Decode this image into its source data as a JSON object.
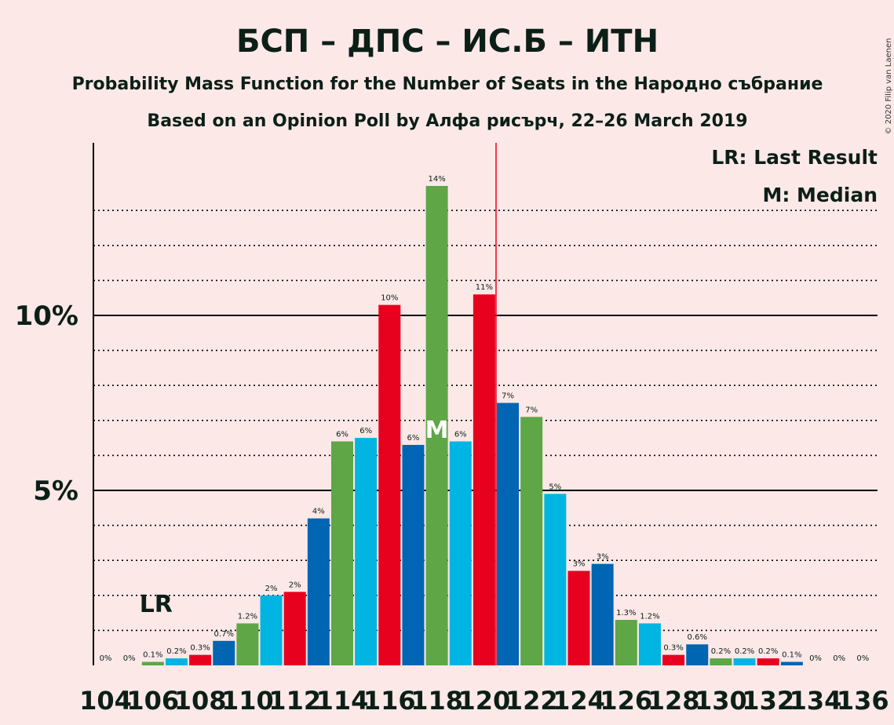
{
  "title": "БСП – ДПС – ИС.Б – ИТН",
  "subtitle1": "Probability Mass Function for the Number of Seats in the Народно събрание",
  "subtitle2": "Based on an Opinion Poll by Алфа рисърч, 22–26 March 2019",
  "copyright": "© 2020 Filip van Laenen",
  "legend": {
    "lr": "LR: Last Result",
    "m": "M: Median"
  },
  "markers": {
    "lr_label": "LR",
    "median_label": "M"
  },
  "colors": {
    "background": "#fde8e8",
    "red": "#e8001f",
    "blue": "#0065b3",
    "green": "#5ea646",
    "cyan": "#00b5e2",
    "majority_line": "#e8001f"
  },
  "chart_data": {
    "type": "bar",
    "x": [
      104,
      105,
      106,
      107,
      108,
      109,
      110,
      111,
      112,
      113,
      114,
      115,
      116,
      117,
      118,
      119,
      120,
      121,
      122,
      123,
      124,
      125,
      126,
      127,
      128,
      129,
      130,
      131,
      132,
      133,
      134,
      135,
      136
    ],
    "values": [
      0,
      0,
      0.1,
      0.2,
      0.3,
      0.7,
      1.2,
      2.0,
      2.1,
      4.2,
      6.4,
      6.5,
      10.3,
      6.3,
      13.7,
      6.4,
      10.6,
      7.5,
      7.1,
      4.9,
      2.7,
      2.9,
      1.3,
      1.2,
      0.3,
      0.6,
      0.2,
      0.2,
      0.2,
      0.1,
      0,
      0,
      0
    ],
    "labels": [
      "0%",
      "0%",
      "0.1%",
      "0.2%",
      "0.3%",
      "0.7%",
      "1.2%",
      "2%",
      "2%",
      "4%",
      "6%",
      "6%",
      "10%",
      "6%",
      "14%",
      "6%",
      "11%",
      "7%",
      "7%",
      "5%",
      "3%",
      "3%",
      "1.3%",
      "1.2%",
      "0.3%",
      "0.6%",
      "0.2%",
      "0.2%",
      "0.2%",
      "0.1%",
      "0%",
      "0%",
      "0%"
    ],
    "colors": [
      "red",
      "blue",
      "green",
      "cyan",
      "red",
      "blue",
      "green",
      "cyan",
      "red",
      "blue",
      "green",
      "cyan",
      "red",
      "blue",
      "green",
      "cyan",
      "red",
      "blue",
      "green",
      "cyan",
      "red",
      "blue",
      "green",
      "cyan",
      "red",
      "blue",
      "green",
      "cyan",
      "red",
      "blue",
      "green",
      "cyan",
      "red"
    ],
    "x_tick_labels": [
      "104",
      "106",
      "108",
      "110",
      "112",
      "114",
      "116",
      "118",
      "120",
      "122",
      "124",
      "126",
      "128",
      "130",
      "132",
      "134",
      "136"
    ],
    "y_tick_labels": [
      "5%",
      "10%"
    ],
    "ylim": [
      0,
      15
    ],
    "last_result": 106,
    "median": 118,
    "majority_line": 121,
    "grid": "dotted every 1%, solid at 5% and 10%",
    "legend_position": "top-right"
  }
}
